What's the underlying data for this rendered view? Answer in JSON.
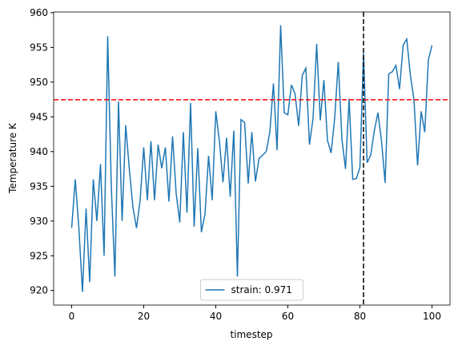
{
  "chart_data": {
    "type": "line",
    "xlabel": "timestep",
    "ylabel": "Temperature K",
    "x": [
      0,
      1,
      2,
      3,
      4,
      5,
      6,
      7,
      8,
      9,
      10,
      11,
      12,
      13,
      14,
      15,
      16,
      17,
      18,
      19,
      20,
      21,
      22,
      23,
      24,
      25,
      26,
      27,
      28,
      29,
      30,
      31,
      32,
      33,
      34,
      35,
      36,
      37,
      38,
      39,
      40,
      41,
      42,
      43,
      44,
      45,
      46,
      47,
      48,
      49,
      50,
      51,
      52,
      53,
      54,
      55,
      56,
      57,
      58,
      59,
      60,
      61,
      62,
      63,
      64,
      65,
      66,
      67,
      68,
      69,
      70,
      71,
      72,
      73,
      74,
      75,
      76,
      77,
      78,
      79,
      80,
      81,
      82,
      83,
      84,
      85,
      86,
      87,
      88,
      89,
      90,
      91,
      92,
      93,
      94,
      95,
      96,
      97,
      98,
      99,
      100
    ],
    "series": [
      {
        "name": "strain: 0.971",
        "color": "#1f77b4",
        "values": [
          929,
          936,
          929,
          919.8,
          931.8,
          921.2,
          936,
          930,
          938.2,
          925,
          956.6,
          935,
          922,
          947.2,
          930,
          943.8,
          937.5,
          932,
          929,
          933,
          940.6,
          933,
          941.5,
          933,
          941,
          937.6,
          940.6,
          932.8,
          942.2,
          934,
          929.8,
          942.8,
          931.2,
          947,
          929.2,
          940.5,
          928.4,
          931,
          939.4,
          933,
          945.8,
          941.5,
          935.6,
          942,
          933.5,
          943,
          922,
          944.6,
          944.2,
          935.4,
          942.8,
          935.7,
          939,
          939.5,
          940,
          942.8,
          949.8,
          940.2,
          958.2,
          945.6,
          945.3,
          949.6,
          948.3,
          943.7,
          951,
          952,
          941,
          944.8,
          955.5,
          944.5,
          950.3,
          941.6,
          939.8,
          944.8,
          952.9,
          941.8,
          937.5,
          947.6,
          936,
          936.1,
          937.7,
          954.2,
          938.4,
          939.5,
          943,
          945.6,
          941.5,
          935.5,
          951.2,
          951.5,
          952.4,
          949,
          955.3,
          956.2,
          951,
          947.5,
          938,
          945.8,
          942.8,
          953.2,
          955.3
        ]
      }
    ],
    "hline": {
      "value": 947.47,
      "color": "#ff0000"
    },
    "vline": {
      "value": 81,
      "color": "#000000"
    },
    "xlim": [
      -5,
      105
    ],
    "ylim": [
      917.9,
      960.1
    ],
    "xticks": [
      0,
      20,
      40,
      60,
      80,
      100
    ],
    "yticks": [
      920,
      925,
      930,
      935,
      940,
      945,
      950,
      955,
      960
    ],
    "legend": "lower center"
  }
}
